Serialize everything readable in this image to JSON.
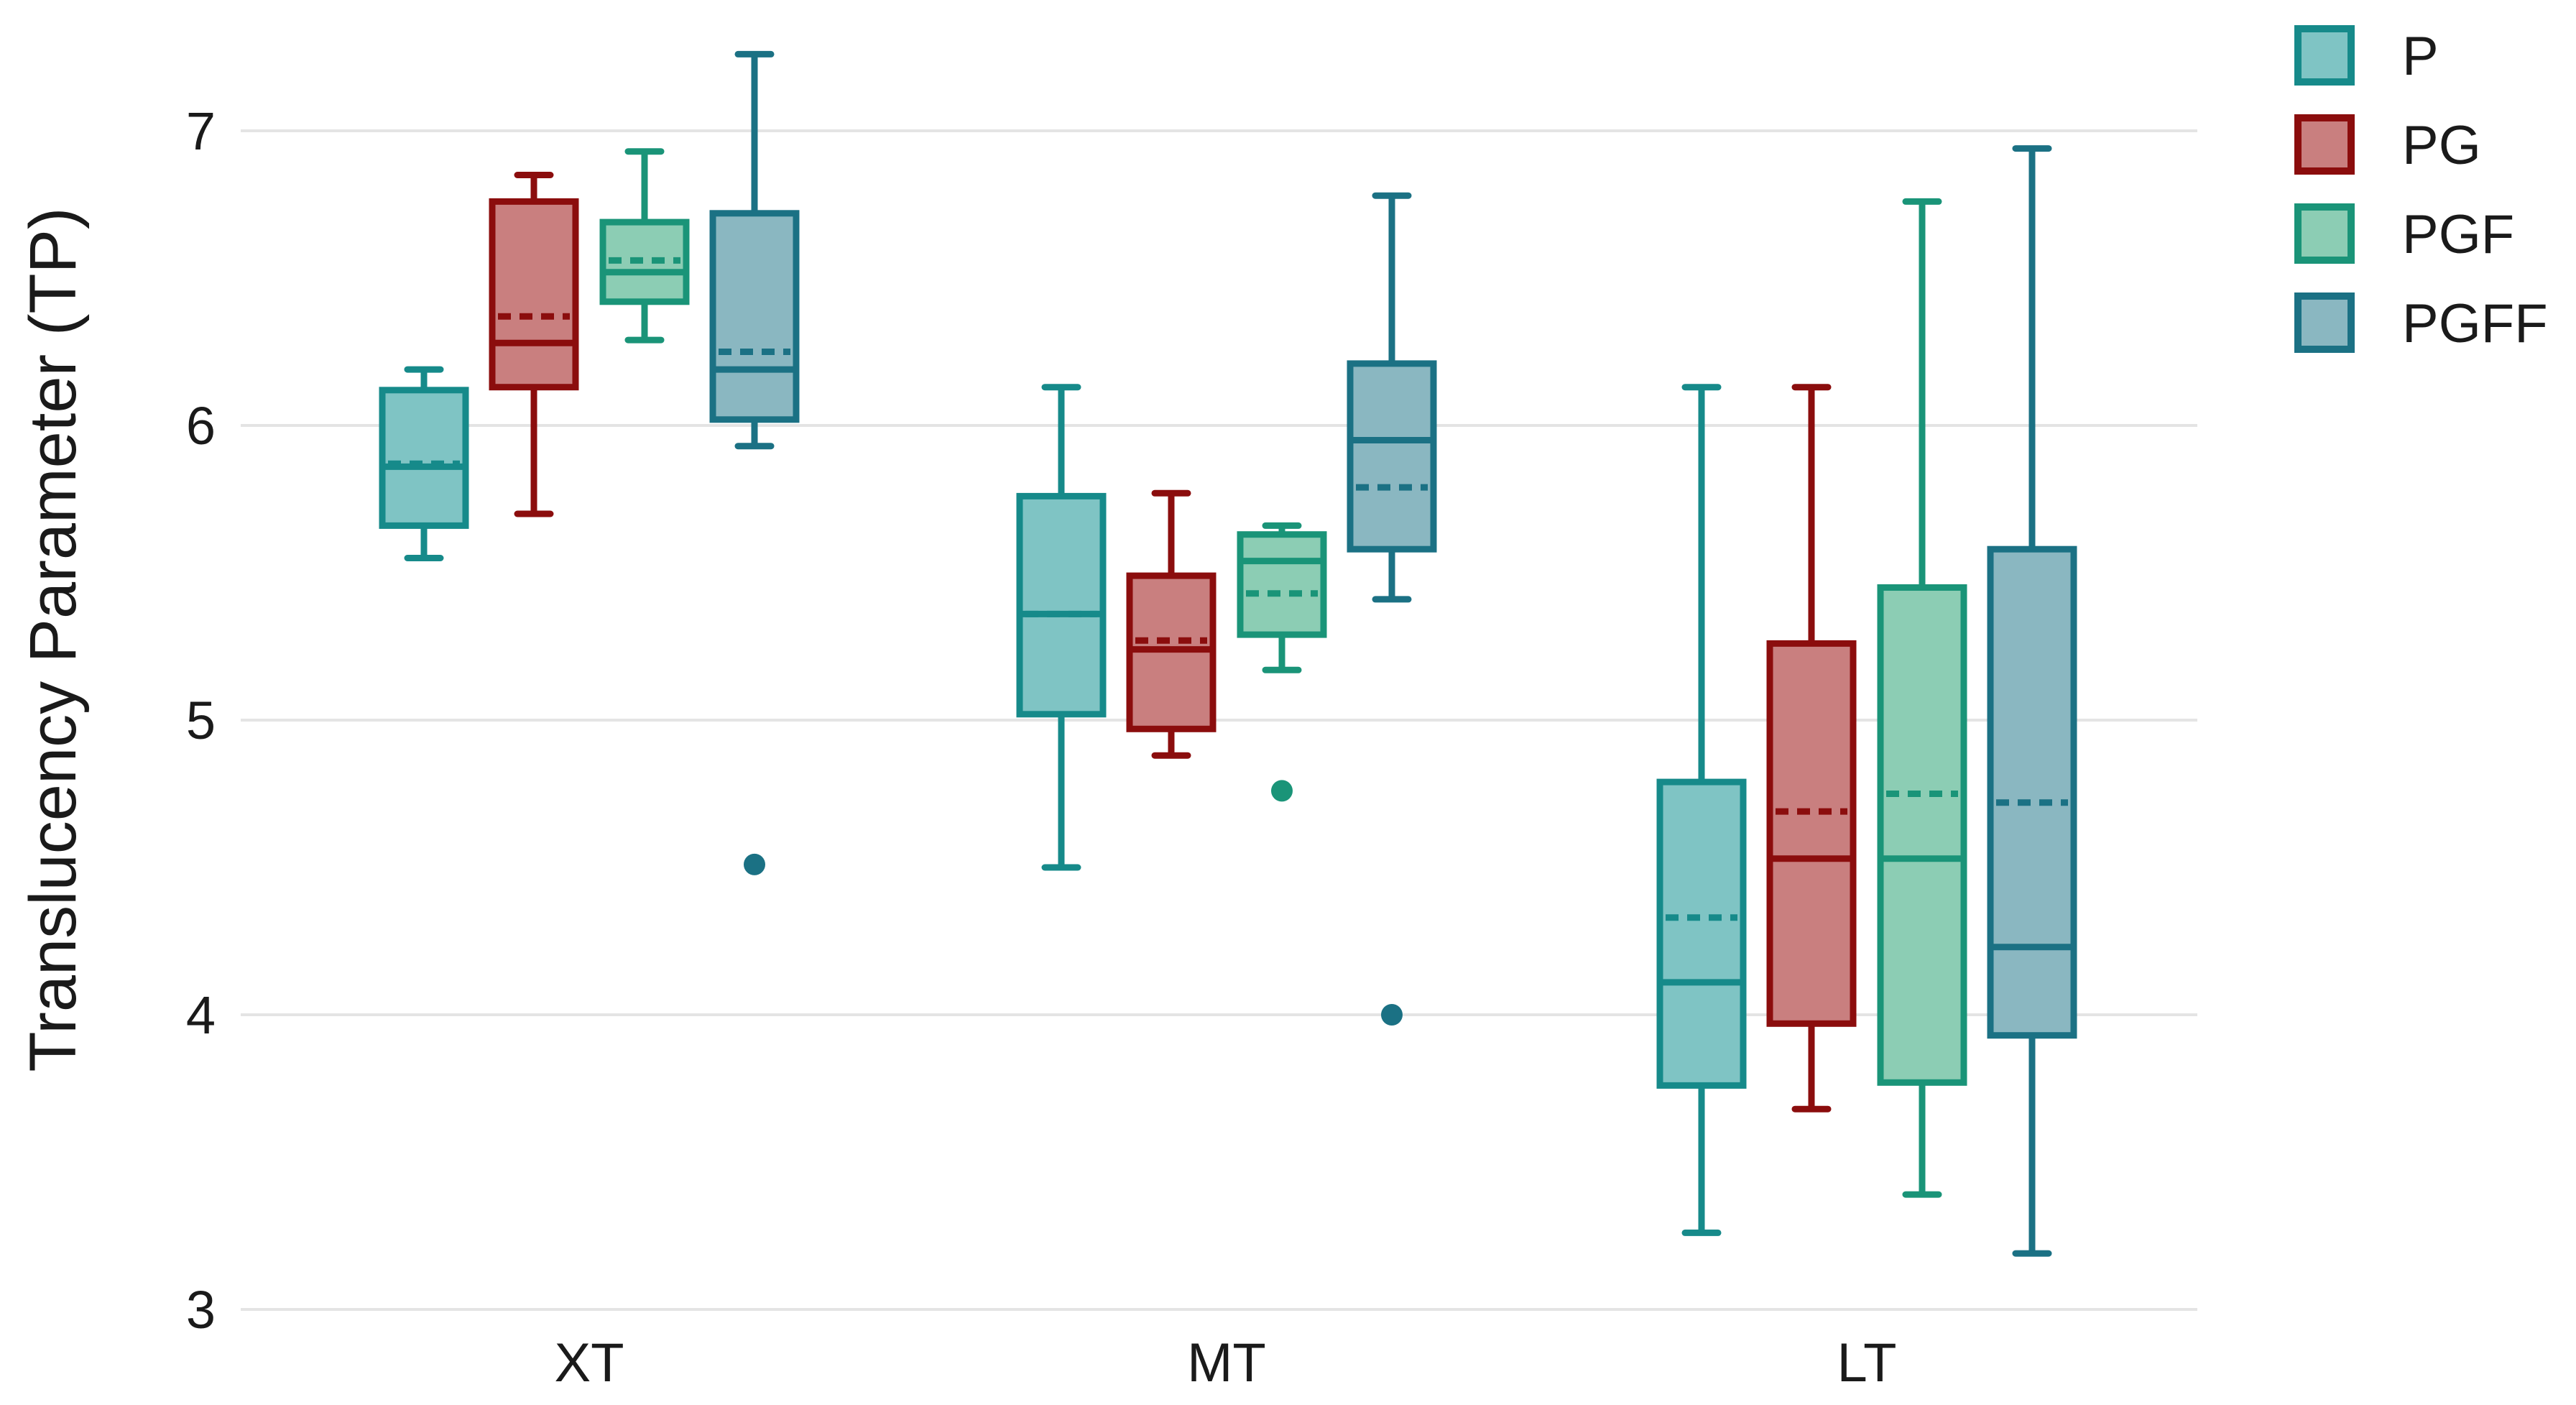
{
  "chart_data": {
    "type": "box",
    "title": "",
    "xlabel": "",
    "ylabel": "Translucency Parameter (TP)",
    "ylim": [
      3,
      7.3
    ],
    "yticks": [
      3,
      4,
      5,
      6,
      7
    ],
    "grid": true,
    "legend_position": "top-right",
    "categories": [
      "XT",
      "MT",
      "LT"
    ],
    "series": [
      {
        "name": "P",
        "color": "#168a8a",
        "fill": "#7fc4c4",
        "boxes": [
          {
            "category": "XT",
            "whisker_low": 5.55,
            "q1": 5.66,
            "median": 5.86,
            "mean": 5.87,
            "q3": 6.12,
            "whisker_high": 6.19,
            "outliers": []
          },
          {
            "category": "MT",
            "whisker_low": 4.5,
            "q1": 5.02,
            "median": 5.36,
            "mean": 5.36,
            "q3": 5.76,
            "whisker_high": 6.13,
            "outliers": []
          },
          {
            "category": "LT",
            "whisker_low": 3.26,
            "q1": 3.76,
            "median": 4.11,
            "mean": 4.33,
            "q3": 4.79,
            "whisker_high": 6.13,
            "outliers": []
          }
        ]
      },
      {
        "name": "PG",
        "color": "#8b0d0d",
        "fill": "#c97f7f",
        "boxes": [
          {
            "category": "XT",
            "whisker_low": 5.7,
            "q1": 6.13,
            "median": 6.28,
            "mean": 6.37,
            "q3": 6.76,
            "whisker_high": 6.85,
            "outliers": []
          },
          {
            "category": "MT",
            "whisker_low": 4.88,
            "q1": 4.97,
            "median": 5.24,
            "mean": 5.27,
            "q3": 5.49,
            "whisker_high": 5.77,
            "outliers": []
          },
          {
            "category": "LT",
            "whisker_low": 3.68,
            "q1": 3.97,
            "median": 4.53,
            "mean": 4.69,
            "q3": 5.26,
            "whisker_high": 6.13,
            "outliers": []
          }
        ]
      },
      {
        "name": "PGF",
        "color": "#1a9478",
        "fill": "#8ccdb4",
        "boxes": [
          {
            "category": "XT",
            "whisker_low": 6.29,
            "q1": 6.42,
            "median": 6.52,
            "mean": 6.56,
            "q3": 6.69,
            "whisker_high": 6.93,
            "outliers": []
          },
          {
            "category": "MT",
            "whisker_low": 5.17,
            "q1": 5.29,
            "median": 5.54,
            "mean": 5.43,
            "q3": 5.63,
            "whisker_high": 5.66,
            "outliers": [
              4.76
            ]
          },
          {
            "category": "LT",
            "whisker_low": 3.39,
            "q1": 3.77,
            "median": 4.53,
            "mean": 4.75,
            "q3": 5.45,
            "whisker_high": 6.76,
            "outliers": []
          }
        ]
      },
      {
        "name": "PGFF",
        "color": "#1b7184",
        "fill": "#8ab7c1",
        "boxes": [
          {
            "category": "XT",
            "whisker_low": 5.93,
            "q1": 6.02,
            "median": 6.19,
            "mean": 6.25,
            "q3": 6.72,
            "whisker_high": 7.26,
            "outliers": [
              4.51
            ]
          },
          {
            "category": "MT",
            "whisker_low": 5.41,
            "q1": 5.58,
            "median": 5.95,
            "mean": 5.79,
            "q3": 6.21,
            "whisker_high": 6.78,
            "outliers": [
              4.0
            ]
          },
          {
            "category": "LT",
            "whisker_low": 3.19,
            "q1": 3.93,
            "median": 4.23,
            "mean": 4.72,
            "q3": 5.58,
            "whisker_high": 6.94,
            "outliers": []
          }
        ]
      }
    ]
  }
}
